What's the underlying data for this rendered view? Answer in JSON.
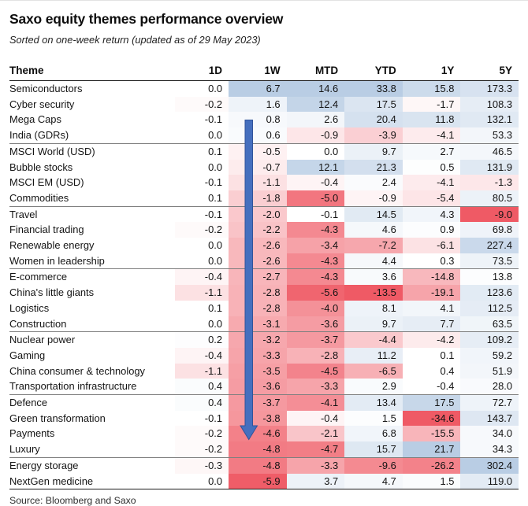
{
  "title": "Saxo equity themes performance overview",
  "subtitle": "Sorted on one-week return (updated as of 29 May 2023)",
  "source": "Source: Bloomberg and Saxo",
  "arrow": {
    "meaning": "sorted descending on 1W column",
    "color": "#456fbe",
    "border_color": "#30539b"
  },
  "heatmap": {
    "positive_max_color": "#b9cde4",
    "negative_max_color": "#ef5a65",
    "min_scale": 6
  },
  "chart_data": {
    "type": "heatmap",
    "title": "Saxo equity themes performance overview",
    "columns": [
      "Theme",
      "1D",
      "1W",
      "MTD",
      "YTD",
      "1Y",
      "5Y"
    ],
    "group_size": 4,
    "sorted_on": "1W",
    "rows": [
      {
        "theme": "Semiconductors",
        "values": [
          0.0,
          6.7,
          14.6,
          33.8,
          15.8,
          173.3
        ]
      },
      {
        "theme": "Cyber security",
        "values": [
          -0.2,
          1.6,
          12.4,
          17.5,
          -1.7,
          108.3
        ]
      },
      {
        "theme": "Mega Caps",
        "values": [
          -0.1,
          0.8,
          2.6,
          20.4,
          11.8,
          132.1
        ]
      },
      {
        "theme": "India (GDRs)",
        "values": [
          0.0,
          0.6,
          -0.9,
          -3.9,
          -4.1,
          53.3
        ]
      },
      {
        "theme": "MSCI World (USD)",
        "values": [
          0.1,
          -0.5,
          0.0,
          9.7,
          2.7,
          46.5
        ]
      },
      {
        "theme": "Bubble stocks",
        "values": [
          0.0,
          -0.7,
          12.1,
          21.3,
          0.5,
          131.9
        ]
      },
      {
        "theme": "MSCI EM (USD)",
        "values": [
          -0.1,
          -1.1,
          -0.4,
          2.4,
          -4.1,
          -1.3
        ]
      },
      {
        "theme": "Commodities",
        "values": [
          0.1,
          -1.8,
          -5.0,
          -0.9,
          -5.4,
          80.5
        ]
      },
      {
        "theme": "Travel",
        "values": [
          -0.1,
          -2.0,
          -0.1,
          14.5,
          4.3,
          -9.0
        ]
      },
      {
        "theme": "Financial trading",
        "values": [
          -0.2,
          -2.2,
          -4.3,
          4.6,
          0.9,
          69.8
        ]
      },
      {
        "theme": "Renewable energy",
        "values": [
          0.0,
          -2.6,
          -3.4,
          -7.2,
          -6.1,
          227.4
        ]
      },
      {
        "theme": "Women in leadership",
        "values": [
          0.0,
          -2.6,
          -4.3,
          4.4,
          0.3,
          73.5
        ]
      },
      {
        "theme": "E-commerce",
        "values": [
          -0.4,
          -2.7,
          -4.3,
          3.6,
          -14.8,
          13.8
        ]
      },
      {
        "theme": "China's little giants",
        "values": [
          -1.1,
          -2.8,
          -5.6,
          -13.5,
          -19.1,
          123.6
        ]
      },
      {
        "theme": "Logistics",
        "values": [
          0.1,
          -2.8,
          -4.0,
          8.1,
          4.1,
          112.5
        ]
      },
      {
        "theme": "Construction",
        "values": [
          0.0,
          -3.1,
          -3.6,
          9.7,
          7.7,
          63.5
        ]
      },
      {
        "theme": "Nuclear power",
        "values": [
          0.2,
          -3.2,
          -3.7,
          -4.4,
          -4.2,
          109.2
        ]
      },
      {
        "theme": "Gaming",
        "values": [
          -0.4,
          -3.3,
          -2.8,
          11.2,
          0.1,
          59.2
        ]
      },
      {
        "theme": "China consumer & technology",
        "values": [
          -1.1,
          -3.5,
          -4.5,
          -6.5,
          0.4,
          51.9
        ]
      },
      {
        "theme": "Transportation infrastructure",
        "values": [
          0.4,
          -3.6,
          -3.3,
          2.9,
          -0.4,
          28.0
        ]
      },
      {
        "theme": "Defence",
        "values": [
          0.4,
          -3.7,
          -4.1,
          13.4,
          17.5,
          72.7
        ]
      },
      {
        "theme": "Green transformation",
        "values": [
          -0.1,
          -3.8,
          -0.4,
          1.5,
          -34.6,
          143.7
        ]
      },
      {
        "theme": "Payments",
        "values": [
          -0.2,
          -4.6,
          -2.1,
          6.8,
          -15.5,
          34.0
        ]
      },
      {
        "theme": "Luxury",
        "values": [
          -0.2,
          -4.8,
          -4.7,
          15.7,
          21.7,
          34.3
        ]
      },
      {
        "theme": "Energy storage",
        "values": [
          -0.3,
          -4.8,
          -3.3,
          -9.6,
          -26.2,
          302.4
        ]
      },
      {
        "theme": "NextGen medicine",
        "values": [
          0.0,
          -5.9,
          3.7,
          4.7,
          1.5,
          119.0
        ]
      }
    ]
  }
}
